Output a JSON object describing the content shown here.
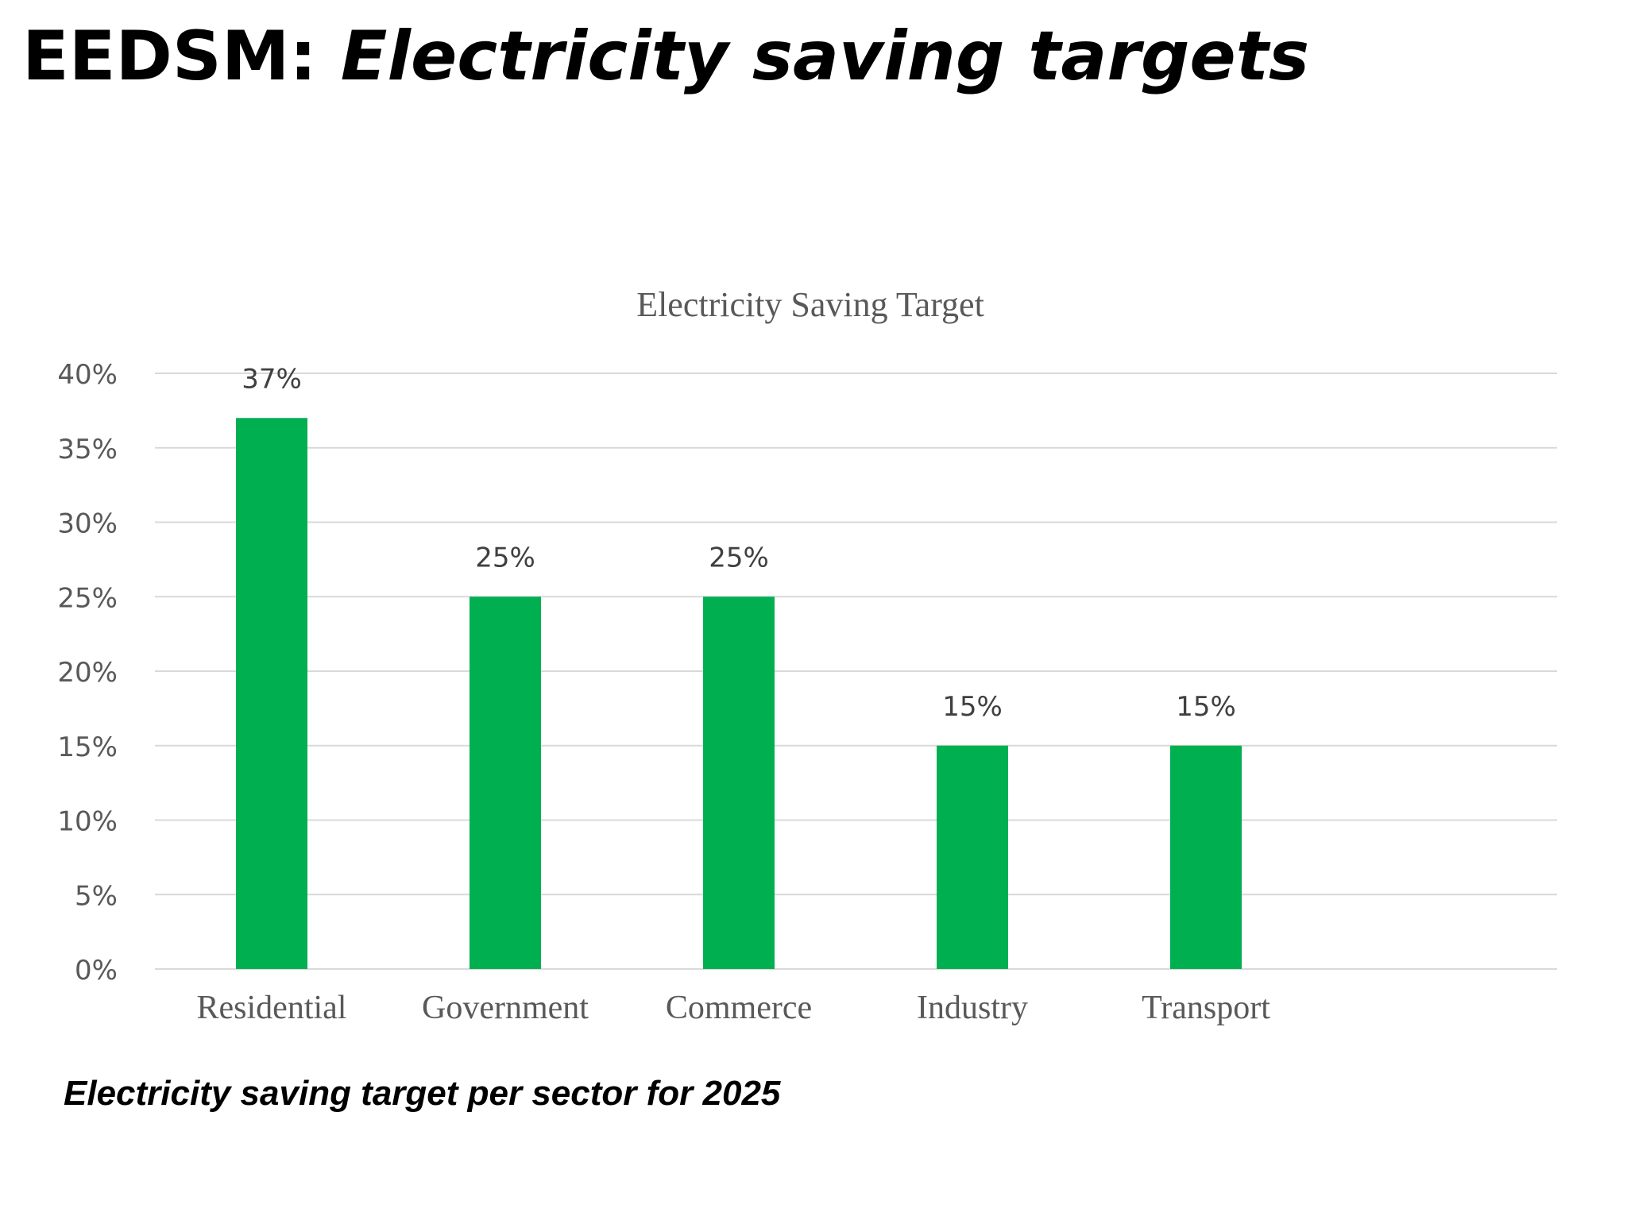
{
  "slide": {
    "title_prefix": "EEDSM: ",
    "title_italic": "Electricity saving targets",
    "caption": "Electricity saving target per sector for 2025"
  },
  "colors": {
    "bar": "#00b050",
    "grid": "#d9d9d9",
    "axis_text": "#595959",
    "title_text": "#595959"
  },
  "chart_data": {
    "type": "bar",
    "title": "Electricity Saving Target",
    "xlabel": "",
    "ylabel": "",
    "categories": [
      "Residential",
      "Government",
      "Commerce",
      "Industry",
      "Transport"
    ],
    "values": [
      37,
      25,
      25,
      15,
      15
    ],
    "data_labels": [
      "37%",
      "25%",
      "25%",
      "15%",
      "15%"
    ],
    "ylim": [
      0,
      40
    ],
    "yticks": [
      0,
      5,
      10,
      15,
      20,
      25,
      30,
      35,
      40
    ],
    "ytick_labels": [
      "0%",
      "5%",
      "10%",
      "15%",
      "20%",
      "25%",
      "30%",
      "35%",
      "40%"
    ],
    "grid": true,
    "legend": "none"
  }
}
